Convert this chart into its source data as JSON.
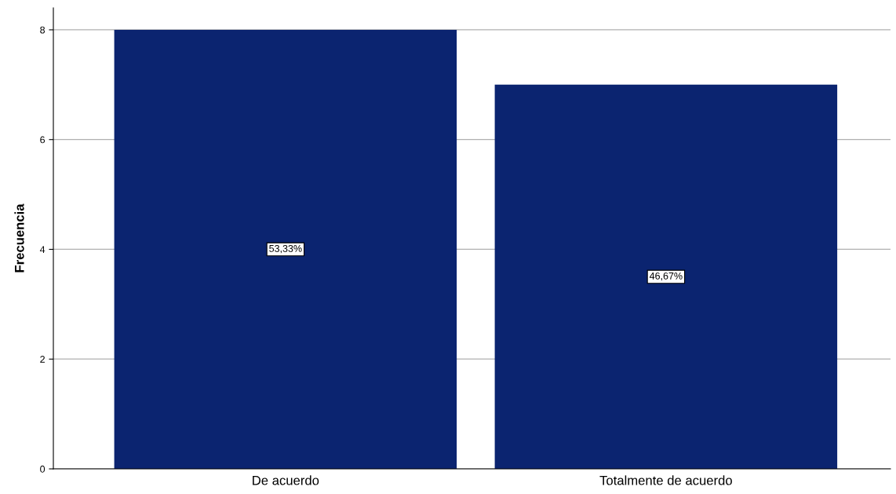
{
  "chart_data": {
    "type": "bar",
    "ylabel": "Frecuencia",
    "categories": [
      "De acuerdo",
      "Totalmente de acuerdo"
    ],
    "values": [
      8,
      7
    ],
    "color": "#0b2470",
    "annotations": [
      "53,33%",
      "46,67%"
    ],
    "ylim": [
      0,
      8.4
    ],
    "yticks": [
      0,
      2,
      4,
      6,
      8
    ],
    "grid": "y",
    "legend": false
  }
}
